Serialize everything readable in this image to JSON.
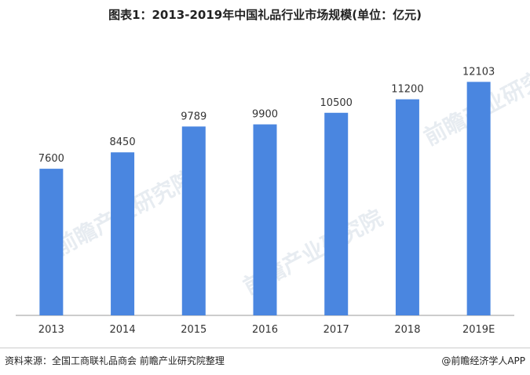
{
  "title": "图表1：2013-2019年中国礼品行业市场规模(单位：亿元)",
  "chart_data": {
    "type": "bar",
    "title": "图表1：2013-2019年中国礼品行业市场规模(单位：亿元)",
    "categories": [
      "2013",
      "2014",
      "2015",
      "2016",
      "2017",
      "2018",
      "2019E"
    ],
    "values": [
      7600,
      8450,
      9789,
      9900,
      10500,
      11200,
      12103
    ],
    "ylim": [
      0,
      13500
    ],
    "grid": false,
    "bar_color": "#4a86e0"
  },
  "footer": {
    "source": "资料来源：全国工商联礼品商会 前瞻产业研究院整理",
    "credit": "@前瞻经济学人APP"
  },
  "watermark": "前瞻产业研究院"
}
